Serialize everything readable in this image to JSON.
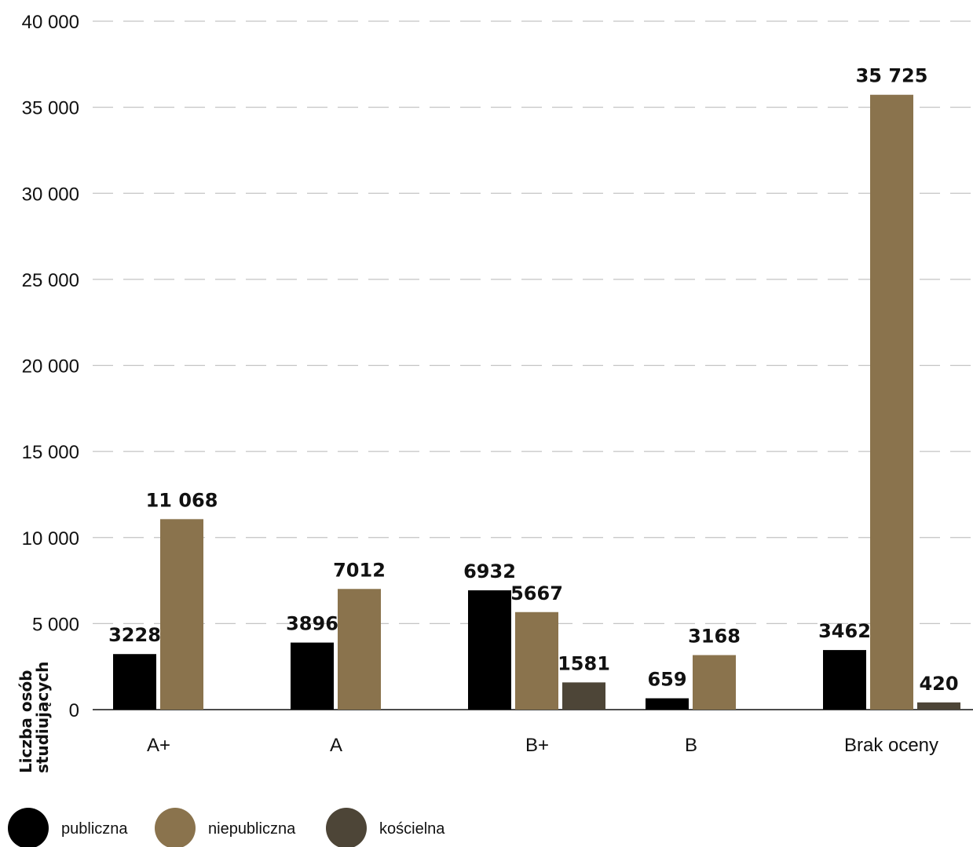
{
  "chart_data": {
    "type": "bar",
    "categories": [
      "A+",
      "A",
      "B+",
      "B",
      "Brak oceny"
    ],
    "series": [
      {
        "name": "publiczna",
        "color": "#000000",
        "values": [
          3228,
          3896,
          6932,
          659,
          3462
        ]
      },
      {
        "name": "niepubliczna",
        "color": "#8a734d",
        "values": [
          11068,
          7012,
          5667,
          3168,
          35725
        ]
      },
      {
        "name": "kościelna",
        "color": "#4d4537",
        "values": [
          null,
          null,
          1581,
          null,
          420
        ]
      }
    ],
    "value_labels": [
      [
        "3228",
        "3896",
        "6932",
        "659",
        "3462"
      ],
      [
        "11 068",
        "7012",
        "5667",
        "3168",
        "35 725"
      ],
      [
        "",
        "",
        "1581",
        "",
        "420"
      ]
    ],
    "ylabel_lines": [
      "Liczba osób",
      "studiujących"
    ],
    "yticks": [
      0,
      5000,
      10000,
      15000,
      20000,
      25000,
      30000,
      35000,
      40000
    ],
    "ytick_labels": [
      "0",
      "5 000",
      "10 000",
      "15 000",
      "20 000",
      "25 000",
      "30 000",
      "35 000",
      "40 000"
    ],
    "ylim": [
      0,
      40000
    ],
    "grid": "dashed horizontal",
    "legend_position": "bottom-left"
  }
}
